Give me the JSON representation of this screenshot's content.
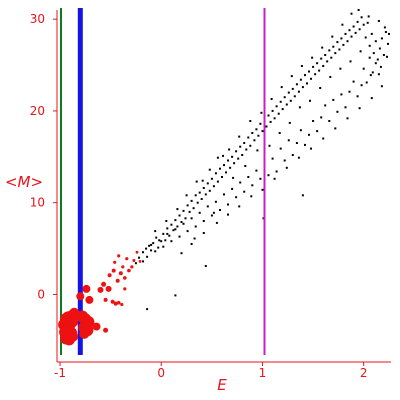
{
  "chart_data": {
    "type": "scatter",
    "title": "",
    "xlabel": "E",
    "ylabel": "<M>",
    "xlim": [
      -1.03,
      2.27
    ],
    "ylim": [
      -6.6,
      31.0
    ],
    "xticks": [
      -1,
      0,
      1,
      2
    ],
    "yticks": [
      0,
      10,
      20,
      30
    ],
    "grid": false,
    "legend": "none",
    "colors": {
      "axis": "#e8141b",
      "tick_label": "#e8141b",
      "black_points": "#000000",
      "red_points": "#ee1111",
      "line_green": "#0a7d1a",
      "line_blue": "#1414e6",
      "line_magenta": "#c81ec8"
    },
    "vertical_lines": [
      {
        "x": -0.99,
        "color": "#0a7d1a",
        "width": 2
      },
      {
        "x": -0.8,
        "color": "#1414e6",
        "width": 5
      },
      {
        "x": 1.02,
        "color": "#c81ec8",
        "width": 2
      }
    ],
    "red_points": [
      {
        "x": -0.95,
        "y": -2.6,
        "s": 5
      },
      {
        "x": -0.92,
        "y": -2.5,
        "s": 6
      },
      {
        "x": -0.89,
        "y": -2.4,
        "s": 6
      },
      {
        "x": -0.96,
        "y": -3.3,
        "s": 6
      },
      {
        "x": -0.93,
        "y": -3.4,
        "s": 7
      },
      {
        "x": -0.9,
        "y": -3.2,
        "s": 6
      },
      {
        "x": -0.95,
        "y": -4.1,
        "s": 6
      },
      {
        "x": -0.92,
        "y": -4.3,
        "s": 7
      },
      {
        "x": -0.89,
        "y": -4.2,
        "s": 6
      },
      {
        "x": -0.94,
        "y": -4.8,
        "s": 6
      },
      {
        "x": -0.91,
        "y": -4.9,
        "s": 6
      },
      {
        "x": -0.87,
        "y": -4.6,
        "s": 5
      },
      {
        "x": -0.87,
        "y": -3.0,
        "s": 5
      },
      {
        "x": -0.86,
        "y": -2.0,
        "s": 5
      },
      {
        "x": -0.78,
        "y": -2.4,
        "s": 6
      },
      {
        "x": -0.75,
        "y": -2.7,
        "s": 6
      },
      {
        "x": -0.72,
        "y": -3.0,
        "s": 6
      },
      {
        "x": -0.76,
        "y": -3.6,
        "s": 6
      },
      {
        "x": -0.73,
        "y": -3.9,
        "s": 6
      },
      {
        "x": -0.76,
        "y": -4.3,
        "s": 5
      },
      {
        "x": -0.8,
        "y": -0.2,
        "s": 4
      },
      {
        "x": -0.74,
        "y": 0.6,
        "s": 4
      },
      {
        "x": -0.71,
        "y": -0.6,
        "s": 4
      },
      {
        "x": -0.64,
        "y": -3.5,
        "s": 4
      },
      {
        "x": -0.55,
        "y": -3.9,
        "s": 2.5
      },
      {
        "x": -0.6,
        "y": 0.5,
        "s": 3
      },
      {
        "x": -0.57,
        "y": 1.1,
        "s": 2.5
      },
      {
        "x": -0.52,
        "y": 0.6,
        "s": 3
      },
      {
        "x": -0.55,
        "y": -0.6,
        "s": 2
      },
      {
        "x": -0.48,
        "y": -0.8,
        "s": 2
      },
      {
        "x": -0.45,
        "y": -1.0,
        "s": 2
      },
      {
        "x": -0.42,
        "y": -0.9,
        "s": 1.8
      },
      {
        "x": -0.39,
        "y": -1.1,
        "s": 1.6
      },
      {
        "x": -0.51,
        "y": 2.1,
        "s": 2
      },
      {
        "x": -0.47,
        "y": 2.6,
        "s": 2
      },
      {
        "x": -0.43,
        "y": 1.5,
        "s": 2
      },
      {
        "x": -0.4,
        "y": 2.3,
        "s": 2
      },
      {
        "x": -0.36,
        "y": 1.8,
        "s": 1.8
      },
      {
        "x": -0.32,
        "y": 2.6,
        "s": 1.8
      },
      {
        "x": -0.29,
        "y": 3.0,
        "s": 1.6
      },
      {
        "x": -0.34,
        "y": 3.9,
        "s": 1.6
      },
      {
        "x": -0.38,
        "y": 3.0,
        "s": 1.6
      },
      {
        "x": -0.42,
        "y": 4.2,
        "s": 1.6
      },
      {
        "x": -0.27,
        "y": 3.7,
        "s": 1.5
      },
      {
        "x": -0.24,
        "y": 4.6,
        "s": 1.4
      },
      {
        "x": -0.21,
        "y": 3.6,
        "s": 1.4
      },
      {
        "x": -0.46,
        "y": 3.5,
        "s": 1.6
      },
      {
        "x": -0.36,
        "y": 0.6,
        "s": 1.6
      }
    ],
    "black_points": [
      [
        -0.25,
        3.4
      ],
      [
        -0.22,
        4.0
      ],
      [
        -0.18,
        4.6
      ],
      [
        -0.15,
        5.0
      ],
      [
        -0.12,
        5.3
      ],
      [
        -0.1,
        4.8
      ],
      [
        -0.08,
        5.6
      ],
      [
        -0.05,
        6.2
      ],
      [
        -0.03,
        5.1
      ],
      [
        0.0,
        5.8
      ],
      [
        0.02,
        6.6
      ],
      [
        0.04,
        5.9
      ],
      [
        0.06,
        7.2
      ],
      [
        0.08,
        6.4
      ],
      [
        0.1,
        7.6
      ],
      [
        0.12,
        7.0
      ],
      [
        0.14,
        8.1
      ],
      [
        0.16,
        7.4
      ],
      [
        0.18,
        8.6
      ],
      [
        0.2,
        7.9
      ],
      [
        0.22,
        9.1
      ],
      [
        0.24,
        8.3
      ],
      [
        0.26,
        9.7
      ],
      [
        0.28,
        9.0
      ],
      [
        0.3,
        10.2
      ],
      [
        0.32,
        9.4
      ],
      [
        0.34,
        10.8
      ],
      [
        0.36,
        10.0
      ],
      [
        0.38,
        11.1
      ],
      [
        0.4,
        10.4
      ],
      [
        0.42,
        11.6
      ],
      [
        0.44,
        10.9
      ],
      [
        0.46,
        12.1
      ],
      [
        0.48,
        11.3
      ],
      [
        0.5,
        12.6
      ],
      [
        0.52,
        11.8
      ],
      [
        0.54,
        13.2
      ],
      [
        0.56,
        12.3
      ],
      [
        0.58,
        13.7
      ],
      [
        0.6,
        12.8
      ],
      [
        0.62,
        14.1
      ],
      [
        0.64,
        13.3
      ],
      [
        0.66,
        14.6
      ],
      [
        0.68,
        13.8
      ],
      [
        0.7,
        15.0
      ],
      [
        0.72,
        14.3
      ],
      [
        0.74,
        15.6
      ],
      [
        0.76,
        14.8
      ],
      [
        0.78,
        16.1
      ],
      [
        0.8,
        15.2
      ],
      [
        0.82,
        16.5
      ],
      [
        0.84,
        15.8
      ],
      [
        0.86,
        17.1
      ],
      [
        0.88,
        16.2
      ],
      [
        0.9,
        17.6
      ],
      [
        0.92,
        16.8
      ],
      [
        0.94,
        18.0
      ],
      [
        0.96,
        17.3
      ],
      [
        0.98,
        18.6
      ],
      [
        1.0,
        17.8
      ],
      [
        1.02,
        19.1
      ],
      [
        1.04,
        18.3
      ],
      [
        1.06,
        19.5
      ],
      [
        1.08,
        18.8
      ],
      [
        1.1,
        20.0
      ],
      [
        1.12,
        19.2
      ],
      [
        1.14,
        20.5
      ],
      [
        1.16,
        19.7
      ],
      [
        1.18,
        21.0
      ],
      [
        1.2,
        20.2
      ],
      [
        1.22,
        21.5
      ],
      [
        1.24,
        20.7
      ],
      [
        1.26,
        22.0
      ],
      [
        1.28,
        21.1
      ],
      [
        1.3,
        22.4
      ],
      [
        1.32,
        21.6
      ],
      [
        1.34,
        22.9
      ],
      [
        1.36,
        22.1
      ],
      [
        1.38,
        23.4
      ],
      [
        1.4,
        22.6
      ],
      [
        1.42,
        23.9
      ],
      [
        1.44,
        23.0
      ],
      [
        1.46,
        24.3
      ],
      [
        1.48,
        23.5
      ],
      [
        1.5,
        24.8
      ],
      [
        1.52,
        24.0
      ],
      [
        1.54,
        25.2
      ],
      [
        1.56,
        24.4
      ],
      [
        1.58,
        25.7
      ],
      [
        1.6,
        24.9
      ],
      [
        1.62,
        26.1
      ],
      [
        1.64,
        25.4
      ],
      [
        1.66,
        26.6
      ],
      [
        1.68,
        25.8
      ],
      [
        1.7,
        27.0
      ],
      [
        1.72,
        26.3
      ],
      [
        1.74,
        27.5
      ],
      [
        1.76,
        26.7
      ],
      [
        1.78,
        27.9
      ],
      [
        1.8,
        27.2
      ],
      [
        1.82,
        28.4
      ],
      [
        1.84,
        27.6
      ],
      [
        1.86,
        28.8
      ],
      [
        1.88,
        28.1
      ],
      [
        1.9,
        29.2
      ],
      [
        1.92,
        28.5
      ],
      [
        1.94,
        29.7
      ],
      [
        1.96,
        28.9
      ],
      [
        1.98,
        30.2
      ],
      [
        2.0,
        29.4
      ],
      [
        2.02,
        28.0
      ],
      [
        2.04,
        29.6
      ],
      [
        2.06,
        27.1
      ],
      [
        2.08,
        28.4
      ],
      [
        2.1,
        26.3
      ],
      [
        2.12,
        27.6
      ],
      [
        2.14,
        25.6
      ],
      [
        2.16,
        26.8
      ],
      [
        2.18,
        27.9
      ],
      [
        2.2,
        26.1
      ],
      [
        2.22,
        28.6
      ],
      [
        2.24,
        27.3
      ],
      [
        2.0,
        24.6
      ],
      [
        2.03,
        23.1
      ],
      [
        2.06,
        25.8
      ],
      [
        2.09,
        24.2
      ],
      [
        2.12,
        25.2
      ],
      [
        2.15,
        24.0
      ],
      [
        1.98,
        22.8
      ],
      [
        1.94,
        21.6
      ],
      [
        1.9,
        23.2
      ],
      [
        1.86,
        22.1
      ],
      [
        1.82,
        20.4
      ],
      [
        1.78,
        21.8
      ],
      [
        1.74,
        19.9
      ],
      [
        1.7,
        21.2
      ],
      [
        1.66,
        18.9
      ],
      [
        1.62,
        20.6
      ],
      [
        1.58,
        19.3
      ],
      [
        1.54,
        17.8
      ],
      [
        1.5,
        18.9
      ],
      [
        1.46,
        17.4
      ],
      [
        1.42,
        16.3
      ],
      [
        1.38,
        17.9
      ],
      [
        1.34,
        16.5
      ],
      [
        1.3,
        15.2
      ],
      [
        1.26,
        16.8
      ],
      [
        1.22,
        14.6
      ],
      [
        1.18,
        15.9
      ],
      [
        1.14,
        13.4
      ],
      [
        1.1,
        14.8
      ],
      [
        1.06,
        13.0
      ],
      [
        1.02,
        14.2
      ],
      [
        0.98,
        12.6
      ],
      [
        0.94,
        13.5
      ],
      [
        0.9,
        11.9
      ],
      [
        0.86,
        12.8
      ],
      [
        0.82,
        11.2
      ],
      [
        0.78,
        12.2
      ],
      [
        0.74,
        10.6
      ],
      [
        0.7,
        11.5
      ],
      [
        0.66,
        9.8
      ],
      [
        0.62,
        10.9
      ],
      [
        0.58,
        9.2
      ],
      [
        0.54,
        10.1
      ],
      [
        0.5,
        8.6
      ],
      [
        0.46,
        9.6
      ],
      [
        0.42,
        8.0
      ],
      [
        0.38,
        8.9
      ],
      [
        0.34,
        7.4
      ],
      [
        0.3,
        8.3
      ],
      [
        0.26,
        6.9
      ],
      [
        0.22,
        7.7
      ],
      [
        0.18,
        6.3
      ],
      [
        0.14,
        7.1
      ],
      [
        0.1,
        5.8
      ],
      [
        0.06,
        6.6
      ],
      [
        0.02,
        5.2
      ],
      [
        -0.02,
        5.9
      ],
      [
        -0.06,
        4.7
      ],
      [
        -0.1,
        5.4
      ],
      [
        -0.14,
        4.1
      ],
      [
        -0.18,
        3.6
      ],
      [
        0.25,
        10.8
      ],
      [
        0.35,
        12.3
      ],
      [
        0.48,
        13.6
      ],
      [
        0.56,
        14.9
      ],
      [
        0.67,
        15.8
      ],
      [
        0.77,
        17.2
      ],
      [
        0.88,
        18.9
      ],
      [
        0.99,
        19.8
      ],
      [
        1.09,
        21.3
      ],
      [
        1.19,
        22.6
      ],
      [
        1.29,
        23.8
      ],
      [
        1.39,
        24.9
      ],
      [
        1.49,
        25.8
      ],
      [
        1.59,
        26.9
      ],
      [
        1.69,
        28.1
      ],
      [
        1.79,
        29.4
      ],
      [
        1.88,
        30.6
      ],
      [
        1.95,
        31.0
      ],
      [
        2.05,
        30.3
      ],
      [
        2.15,
        29.8
      ],
      [
        2.21,
        29.1
      ],
      [
        2.25,
        28.4
      ],
      [
        0.3,
        5.5
      ],
      [
        0.42,
        6.7
      ],
      [
        0.55,
        7.8
      ],
      [
        0.66,
        8.7
      ],
      [
        0.77,
        9.6
      ],
      [
        0.89,
        10.7
      ],
      [
        1.0,
        11.4
      ],
      [
        1.12,
        12.6
      ],
      [
        1.24,
        13.8
      ],
      [
        1.36,
        14.9
      ],
      [
        1.48,
        15.9
      ],
      [
        1.6,
        17.0
      ],
      [
        1.72,
        18.1
      ],
      [
        1.84,
        19.2
      ],
      [
        1.96,
        20.3
      ],
      [
        2.08,
        21.4
      ],
      [
        2.18,
        22.7
      ],
      [
        1.4,
        10.8
      ],
      [
        1.01,
        8.3
      ],
      [
        0.44,
        3.1
      ],
      [
        0.14,
        -0.1
      ],
      [
        -0.14,
        -1.6
      ],
      [
        0.2,
        4.5
      ],
      [
        0.33,
        6.1
      ],
      [
        0.52,
        8.9
      ],
      [
        0.71,
        12.7
      ],
      [
        0.83,
        14.0
      ],
      [
        0.95,
        15.7
      ],
      [
        1.07,
        16.2
      ],
      [
        1.17,
        17.6
      ],
      [
        1.27,
        18.7
      ],
      [
        1.37,
        20.4
      ],
      [
        1.47,
        21.1
      ],
      [
        1.57,
        22.5
      ],
      [
        1.67,
        23.7
      ],
      [
        1.77,
        24.6
      ],
      [
        1.87,
        25.4
      ],
      [
        1.97,
        26.5
      ],
      [
        2.07,
        23.9
      ],
      [
        2.17,
        24.8
      ],
      [
        2.23,
        25.9
      ],
      [
        -0.06,
        6.9
      ],
      [
        0.05,
        8.0
      ],
      [
        0.16,
        9.3
      ],
      [
        0.41,
        12.4
      ],
      [
        0.61,
        15.1
      ]
    ]
  }
}
